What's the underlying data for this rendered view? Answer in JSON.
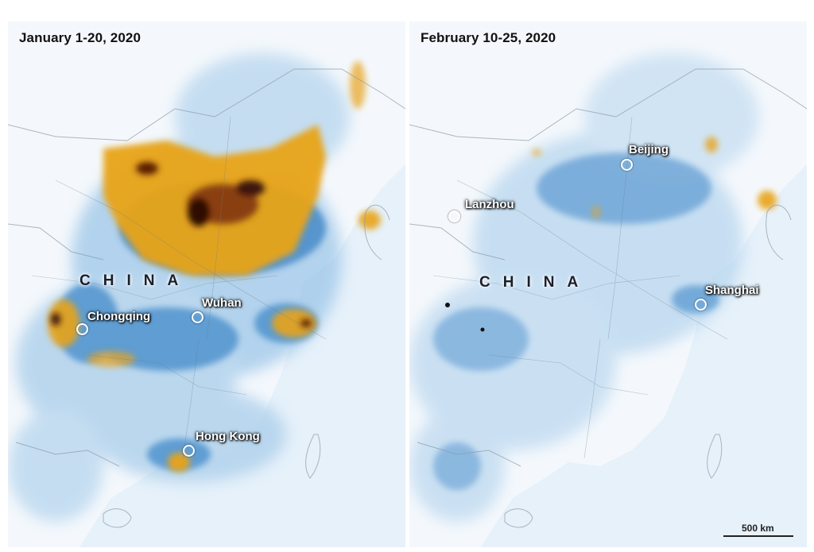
{
  "panels": [
    {
      "title": "January 1-20, 2020",
      "country_label": "CHINA",
      "cities": [
        "Chongqing",
        "Wuhan",
        "Hong Kong"
      ]
    },
    {
      "title": "February 10-25, 2020",
      "country_label": "CHINA",
      "cities": [
        "Beijing",
        "Lanzhou",
        "Shanghai"
      ]
    }
  ],
  "scale_bar": {
    "label": "500 km"
  },
  "colors": {
    "background_sea": "#e3f0f9",
    "land_base": "#f3f8fc",
    "low_no2": "#3a86c8",
    "medium_no2": "#e8a318",
    "high_no2": "#3a1608",
    "label_text": "#ffffff"
  }
}
